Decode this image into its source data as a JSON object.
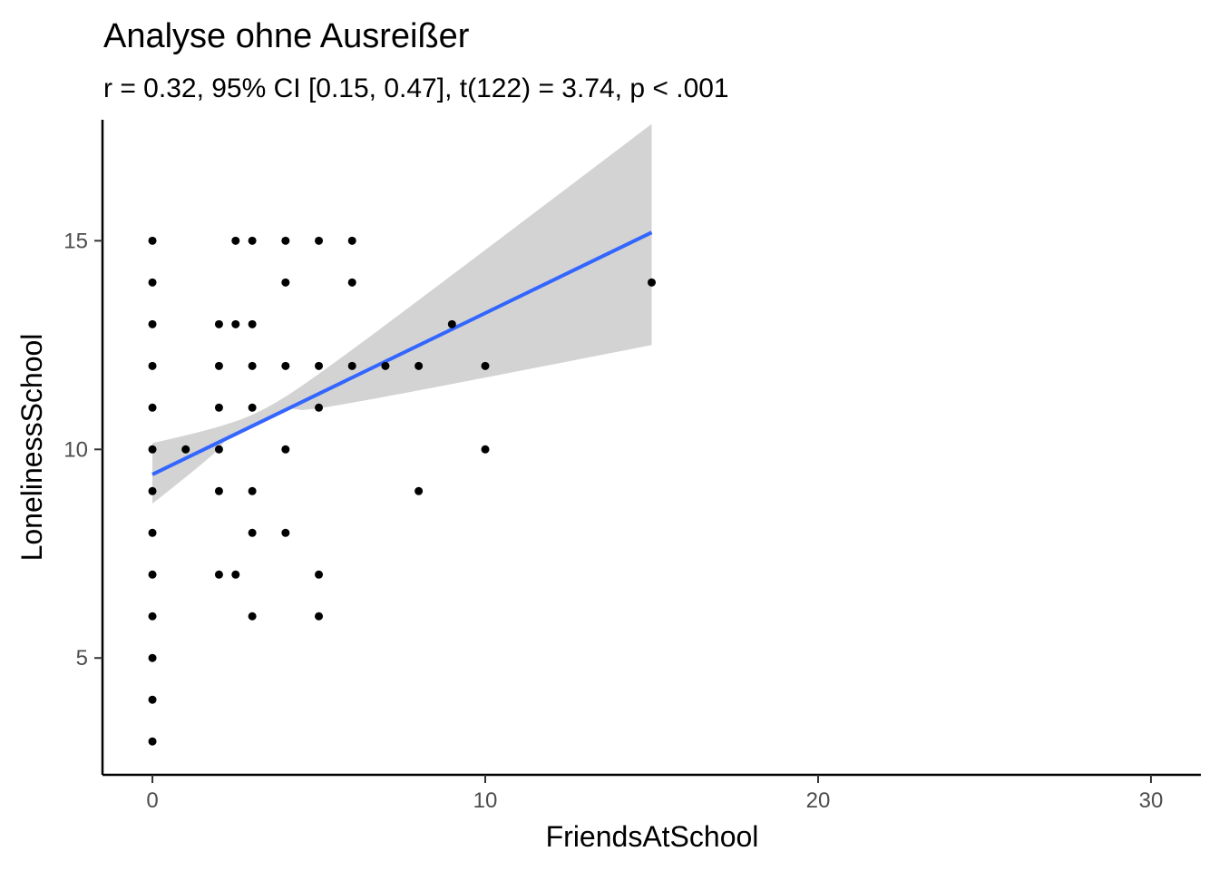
{
  "chart_data": {
    "type": "scatter",
    "title": "Analyse ohne Ausreißer",
    "subtitle": "r = 0.32, 95% CI [0.15, 0.47], t(122) = 3.74, p < .001",
    "xlabel": "FriendsAtSchool",
    "ylabel": "LonelinessSchool",
    "xlim": [
      -1.5,
      31.5
    ],
    "ylim": [
      2.2,
      17.9
    ],
    "xticks": [
      0,
      10,
      20,
      30
    ],
    "yticks": [
      5,
      10,
      15
    ],
    "grid": false,
    "points": [
      [
        0,
        15
      ],
      [
        0,
        14
      ],
      [
        0,
        13
      ],
      [
        0,
        12
      ],
      [
        0,
        11
      ],
      [
        0,
        10
      ],
      [
        0,
        9
      ],
      [
        0,
        8
      ],
      [
        0,
        7
      ],
      [
        0,
        6
      ],
      [
        0,
        5
      ],
      [
        0,
        4
      ],
      [
        0,
        3
      ],
      [
        1,
        10
      ],
      [
        2,
        13
      ],
      [
        2,
        12
      ],
      [
        2,
        11
      ],
      [
        2,
        10
      ],
      [
        2,
        9
      ],
      [
        2,
        7
      ],
      [
        2.5,
        15
      ],
      [
        2.5,
        13
      ],
      [
        2.5,
        7
      ],
      [
        3,
        15
      ],
      [
        3,
        13
      ],
      [
        3,
        12
      ],
      [
        3,
        11
      ],
      [
        3,
        9
      ],
      [
        3,
        8
      ],
      [
        3,
        6
      ],
      [
        4,
        15
      ],
      [
        4,
        14
      ],
      [
        4,
        12
      ],
      [
        4,
        10
      ],
      [
        4,
        8
      ],
      [
        5,
        15
      ],
      [
        5,
        12
      ],
      [
        5,
        11
      ],
      [
        5,
        7
      ],
      [
        5,
        6
      ],
      [
        6,
        15
      ],
      [
        6,
        14
      ],
      [
        6,
        12
      ],
      [
        7,
        12
      ],
      [
        8,
        12
      ],
      [
        8,
        9
      ],
      [
        9,
        13
      ],
      [
        10,
        12
      ],
      [
        10,
        10
      ],
      [
        15,
        14
      ]
    ],
    "regression": {
      "x": [
        0,
        15
      ],
      "y": [
        9.4,
        15.2
      ],
      "ci_lower": [
        8.7,
        12.5
      ],
      "ci_upper": [
        10.15,
        17.8
      ],
      "line_color": "#3366FF",
      "band_color": "#D3D3D3"
    },
    "point_color": "#000000"
  }
}
